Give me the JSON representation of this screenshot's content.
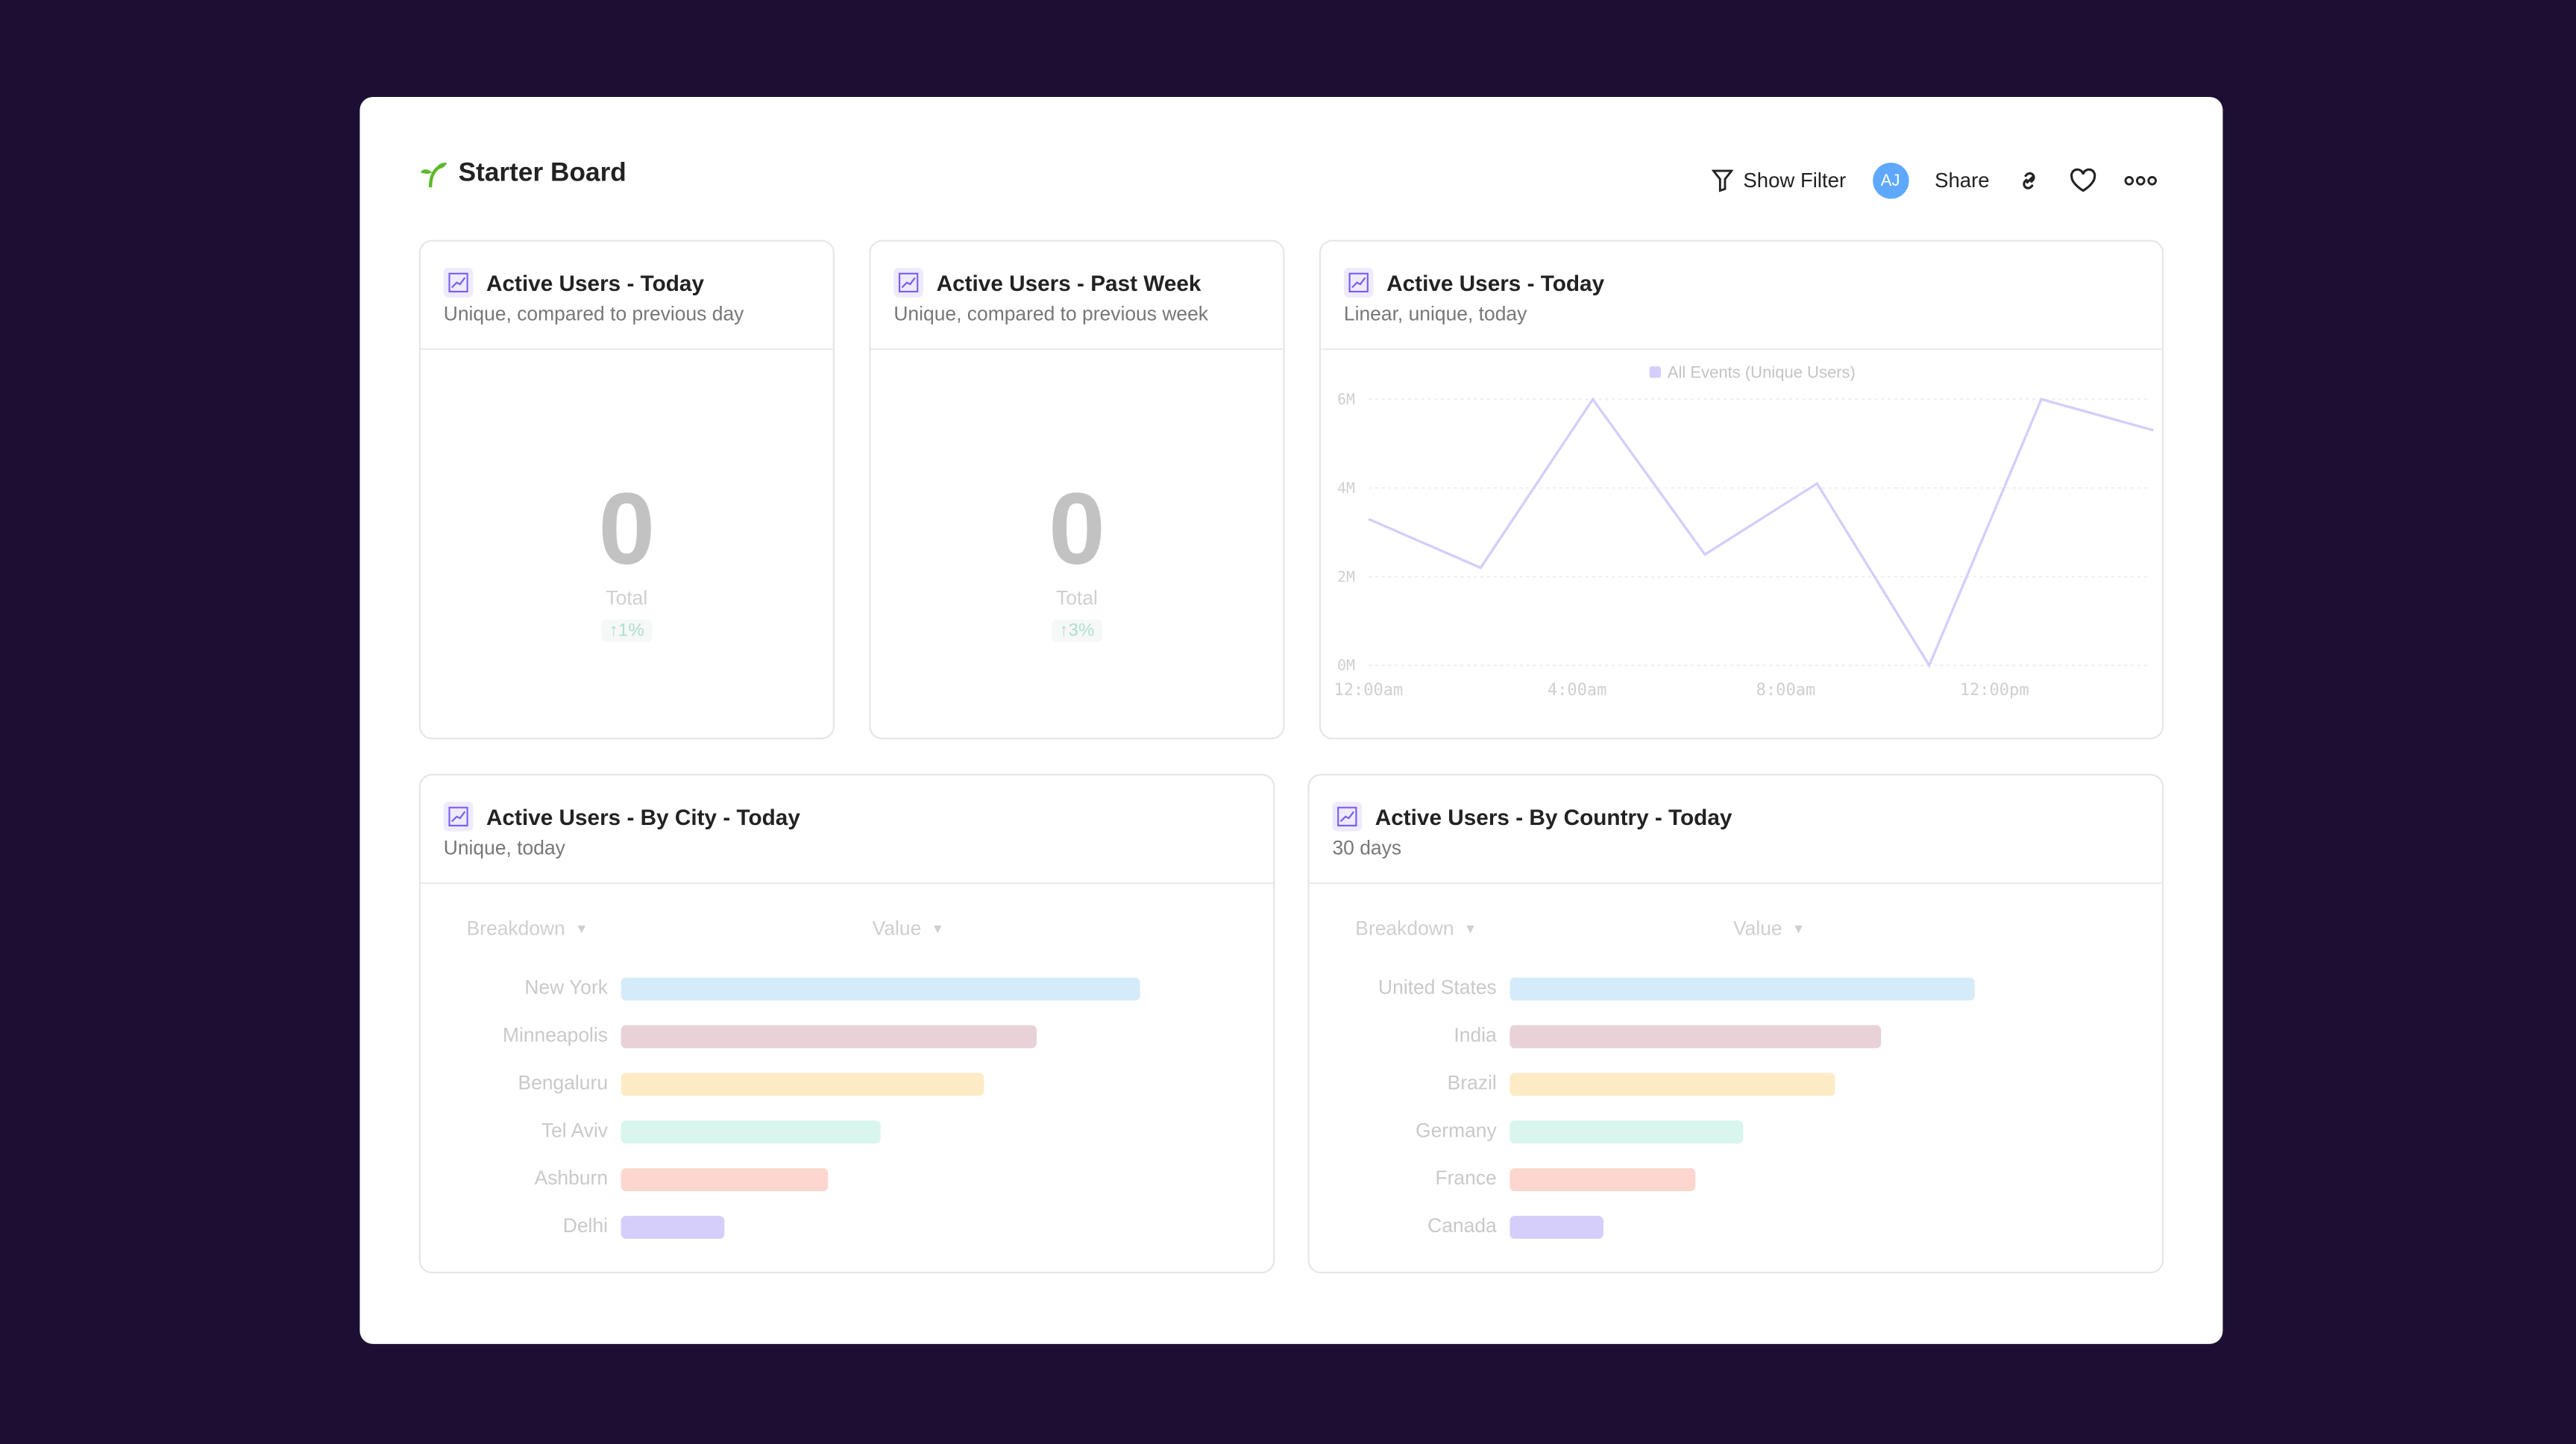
{
  "header": {
    "title": "Starter Board",
    "show_filter": "Show Filter",
    "avatar_initials": "AJ",
    "share": "Share",
    "icons": [
      "sprout-icon",
      "filter-icon",
      "link-icon",
      "heart-icon",
      "more-icon"
    ]
  },
  "colors": {
    "background": "#1c0f33",
    "avatar": "#5ea9ff",
    "line": "#d4cdfb",
    "delta": "#aee0ce",
    "brand": "#5cb82a"
  },
  "cards": [
    {
      "title": "Active Users - Today",
      "subtitle": "Unique, compared to previous day",
      "value": "0",
      "label": "Total",
      "delta": "↑1%"
    },
    {
      "title": "Active Users - Past Week",
      "subtitle": "Unique, compared to previous week",
      "value": "0",
      "label": "Total",
      "delta": "↑3%"
    }
  ],
  "line_card": {
    "title": "Active Users - Today",
    "subtitle": "Linear, unique, today"
  },
  "city_card": {
    "title": "Active Users - By City - Today",
    "subtitle": "Unique, today",
    "breakdown": "Breakdown",
    "value": "Value"
  },
  "country_card": {
    "title": "Active Users - By Country - Today",
    "subtitle": "30 days",
    "breakdown": "Breakdown",
    "value": "Value"
  },
  "chart_data": [
    {
      "type": "line",
      "legend": "All Events (Unique Users)",
      "legend_placement": "top",
      "grid": true,
      "y_ticks": [
        "0M",
        "2M",
        "4M",
        "6M"
      ],
      "ylim": [
        0,
        6
      ],
      "x_ticks": [
        "12:00am",
        "4:00am",
        "8:00am",
        "12:00pm"
      ],
      "x_hours": [
        0,
        2.15,
        4.3,
        6.45,
        8.6,
        10.75,
        12.9,
        15.05
      ],
      "values": [
        3.3,
        2.2,
        6.0,
        2.5,
        4.1,
        0.0,
        6.0,
        5.3
      ]
    },
    {
      "type": "bar",
      "orientation": "horizontal",
      "categories": [
        "New York",
        "Minneapolis",
        "Bengaluru",
        "Tel Aviv",
        "Ashburn",
        "Delhi"
      ],
      "values": [
        100,
        80,
        70,
        50,
        40,
        20
      ],
      "colors": [
        "#d6ebfa",
        "#e9d1d8",
        "#fdebc6",
        "#d8f5ee",
        "#fdd6cf",
        "#d6cefa"
      ]
    },
    {
      "type": "bar",
      "orientation": "horizontal",
      "categories": [
        "United States",
        "India",
        "Brazil",
        "Germany",
        "France",
        "Canada"
      ],
      "values": [
        100,
        80,
        70,
        50,
        40,
        20
      ],
      "colors": [
        "#d6ebfa",
        "#e9d1d8",
        "#fdebc6",
        "#d8f5ee",
        "#fdd6cf",
        "#d6cefa"
      ]
    }
  ]
}
